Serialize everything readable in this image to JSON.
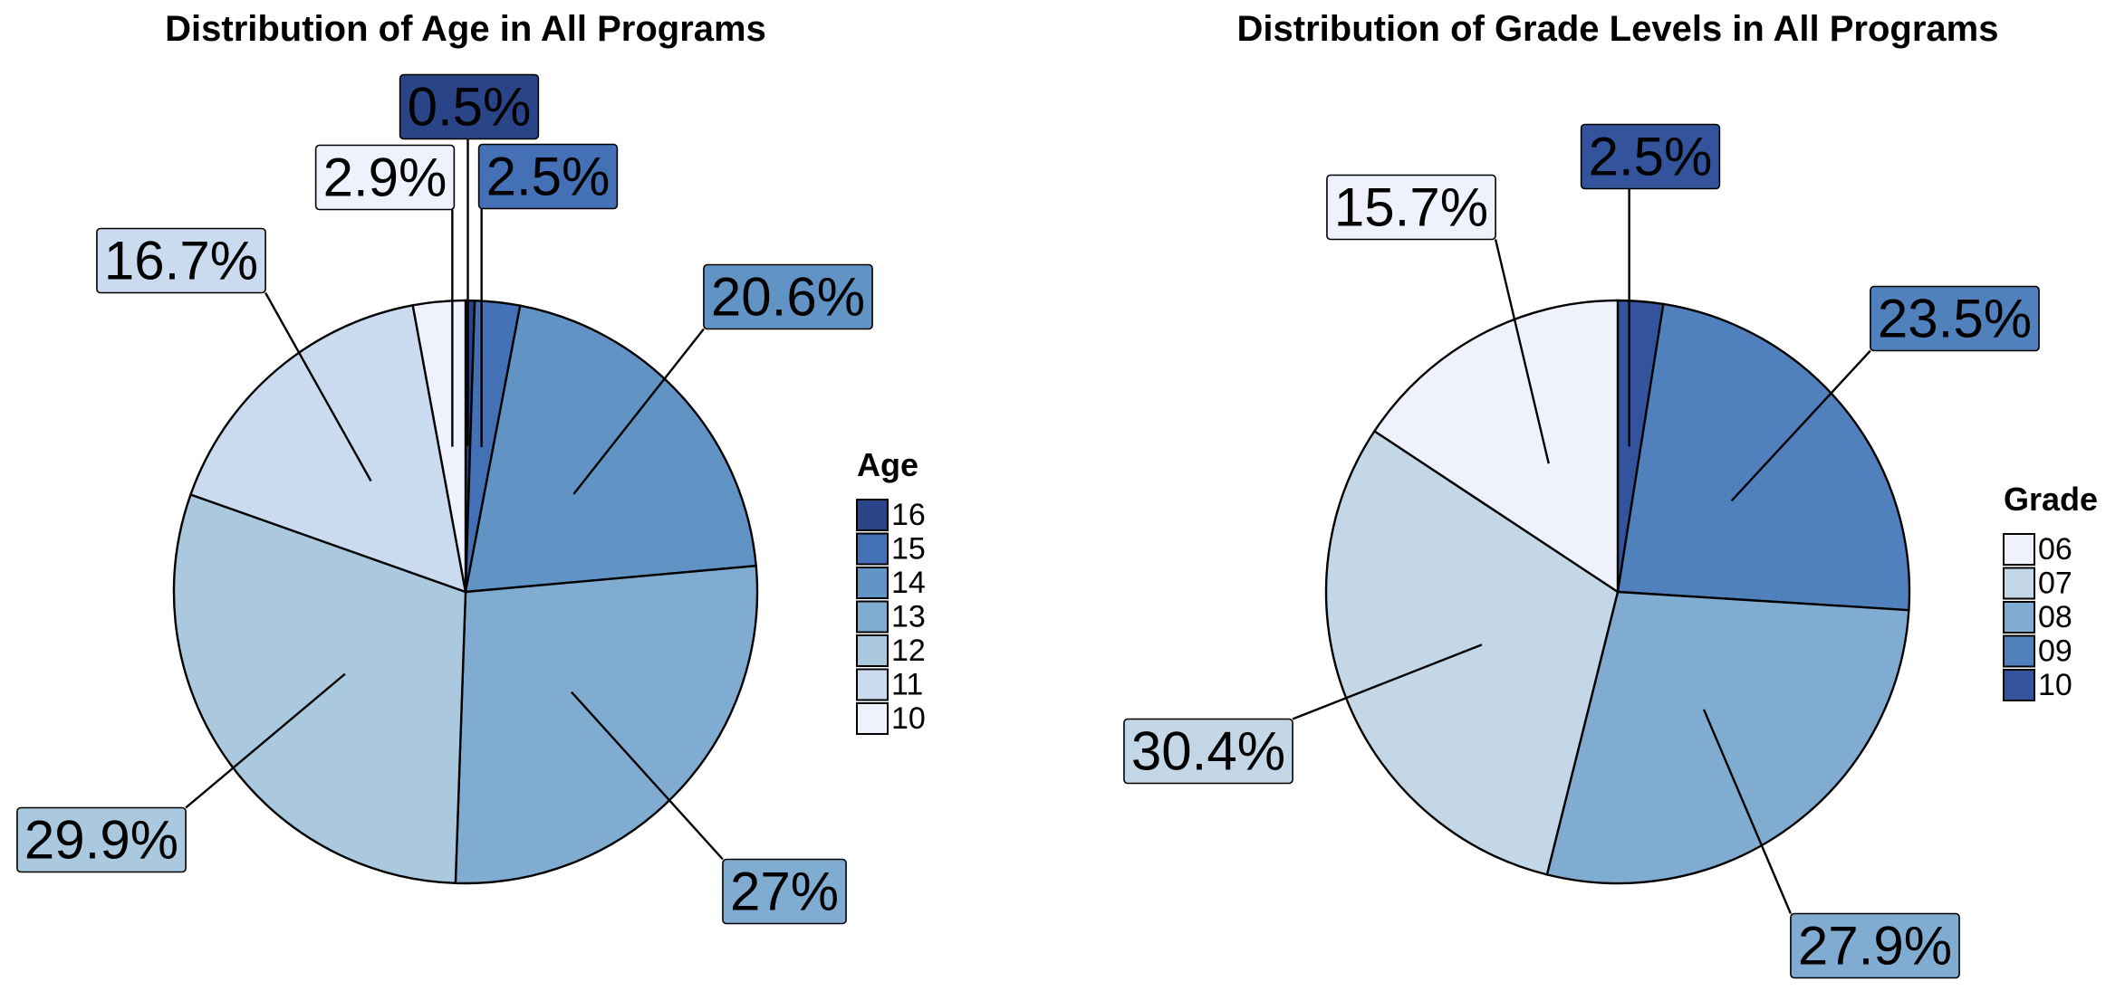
{
  "chart_data": [
    {
      "type": "pie",
      "title": "Distribution of Age in All Programs",
      "legend": {
        "title": "Age",
        "placement": "right"
      },
      "categories": [
        "16",
        "15",
        "14",
        "13",
        "12",
        "11",
        "10"
      ],
      "values": [
        0.5,
        2.5,
        20.6,
        27,
        29.9,
        16.7,
        2.9
      ],
      "labels": [
        "0.5%",
        "2.5%",
        "20.6%",
        "27%",
        "29.9%",
        "16.7%",
        "2.9%"
      ],
      "colors": [
        "#2a4587",
        "#4470b5",
        "#6194c5",
        "#81acd2",
        "#aac9df",
        "#cadaef",
        "#eef2fc"
      ]
    },
    {
      "type": "pie",
      "title": "Distribution of Grade Levels in All Programs",
      "legend": {
        "title": "Grade",
        "placement": "right"
      },
      "categories": [
        "10",
        "09",
        "08",
        "07",
        "06"
      ],
      "values": [
        2.5,
        23.5,
        27.9,
        30.4,
        15.7
      ],
      "labels": [
        "2.5%",
        "23.5%",
        "27.9%",
        "30.4%",
        "15.7%"
      ],
      "colors": [
        "#33549c",
        "#5081bc",
        "#81acd2",
        "#c4d7e6",
        "#eff2fc"
      ]
    }
  ]
}
